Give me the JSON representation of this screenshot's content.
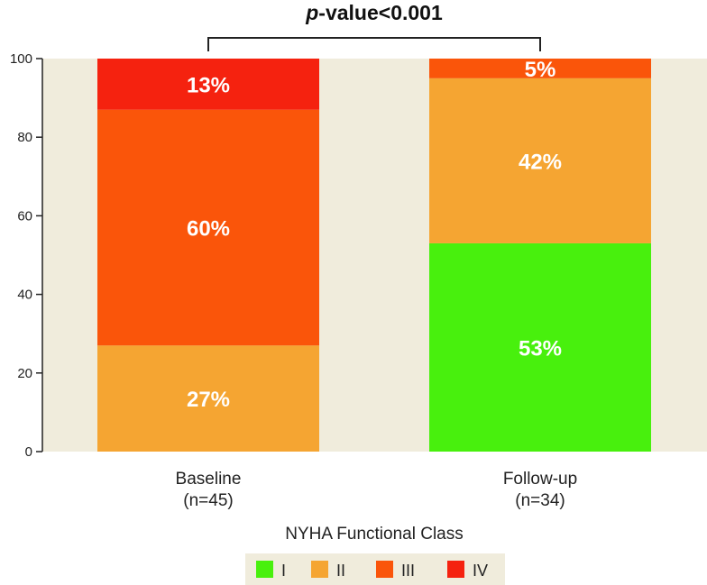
{
  "chart_data": {
    "type": "bar",
    "stacked": true,
    "categories": [
      "Baseline",
      "Follow-up"
    ],
    "category_sublabels": [
      "(n=45)",
      "(n=34)"
    ],
    "series": [
      {
        "name": "I",
        "color": "#48f00d",
        "values": [
          0,
          53
        ]
      },
      {
        "name": "II",
        "color": "#f5a532",
        "values": [
          27,
          42
        ]
      },
      {
        "name": "III",
        "color": "#fa550a",
        "values": [
          60,
          5
        ]
      },
      {
        "name": "IV",
        "color": "#f5220f",
        "values": [
          13,
          0
        ]
      }
    ],
    "data_labels": [
      [
        "",
        "27%",
        "60%",
        "13%"
      ],
      [
        "53%",
        "42%",
        "5%",
        ""
      ]
    ],
    "ylim": [
      0,
      100
    ],
    "yticks": [
      0,
      20,
      40,
      60,
      80,
      100
    ],
    "annotation_prefix": "p",
    "annotation_suffix": "-value<0.001",
    "legend_title": "NYHA Functional Class",
    "legend_position": "bottom",
    "plot_background": "#f0ecdc",
    "legend_background": "#f0ecdc"
  }
}
